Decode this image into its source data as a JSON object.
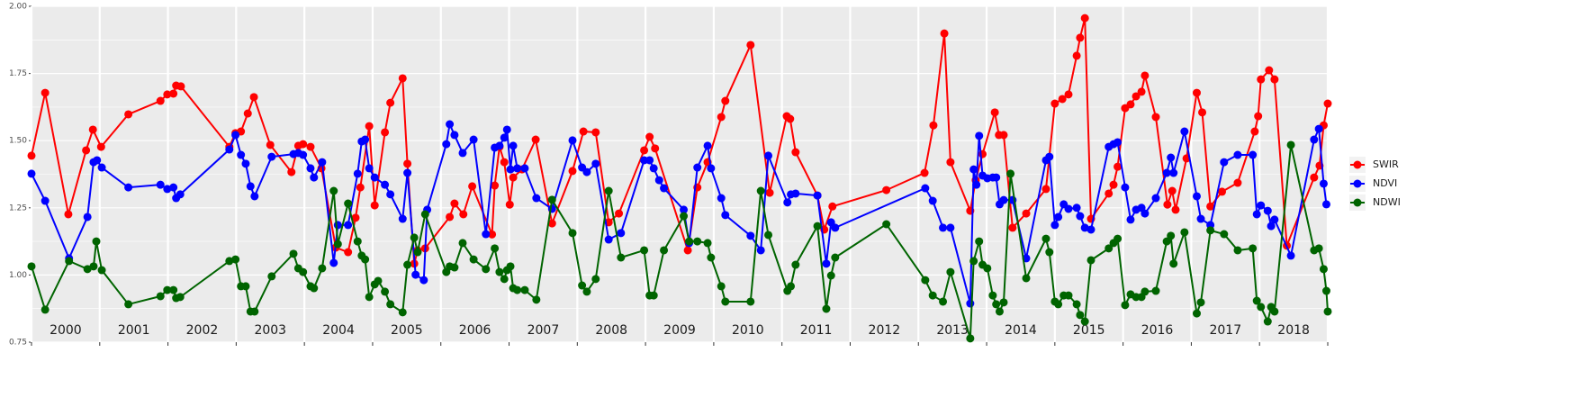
{
  "chart_data": {
    "type": "line",
    "xlim": [
      2000,
      2019
    ],
    "xticks": [
      2000,
      2001,
      2002,
      2003,
      2004,
      2005,
      2006,
      2007,
      2008,
      2009,
      2010,
      2011,
      2012,
      2013,
      2014,
      2015,
      2016,
      2017,
      2018,
      2019
    ],
    "year_labels": [
      "2000",
      "2001",
      "2002",
      "2003",
      "2004",
      "2005",
      "2006",
      "2007",
      "2008",
      "2009",
      "2010",
      "2011",
      "2012",
      "2013",
      "2014",
      "2015",
      "2016",
      "2017",
      "2018"
    ],
    "ylim": [
      0.75,
      2.0
    ],
    "yticks": [
      {
        "value": 0.75,
        "label": "0.75"
      },
      {
        "value": 1.0,
        "label": "1.00"
      },
      {
        "value": 1.25,
        "label": "1.25"
      },
      {
        "value": 1.5,
        "label": "1.50"
      },
      {
        "value": 1.75,
        "label": "1.75"
      },
      {
        "value": 2.0,
        "label": "2.00"
      }
    ],
    "grid": true,
    "legend": "right",
    "series": [
      {
        "name": "SWIR",
        "color": "#ff0000",
        "x": [
          2000.0,
          2000.2,
          2000.54,
          2000.8,
          2000.9,
          2001.02,
          2001.42,
          2001.89,
          2001.99,
          2002.08,
          2002.12,
          2002.19,
          2002.9,
          2002.99,
          2003.07,
          2003.17,
          2003.26,
          2003.5,
          2003.81,
          2003.91,
          2003.98,
          2004.09,
          2004.25,
          2004.46,
          2004.64,
          2004.75,
          2004.82,
          2004.95,
          2005.03,
          2005.18,
          2005.26,
          2005.44,
          2005.51,
          2005.61,
          2005.66,
          2005.77,
          2006.13,
          2006.2,
          2006.33,
          2006.46,
          2006.75,
          2006.79,
          2006.86,
          2006.93,
          2007.01,
          2007.06,
          2007.19,
          2007.39,
          2007.63,
          2007.93,
          2008.09,
          2008.27,
          2008.46,
          2008.61,
          2008.98,
          2009.06,
          2009.14,
          2009.62,
          2009.76,
          2009.91,
          2010.11,
          2010.17,
          2010.54,
          2010.82,
          2011.07,
          2011.12,
          2011.2,
          2011.52,
          2011.62,
          2011.74,
          2012.53,
          2013.09,
          2013.22,
          2013.38,
          2013.47,
          2013.76,
          2013.84,
          2013.94,
          2014.12,
          2014.18,
          2014.25,
          2014.38,
          2014.58,
          2014.87,
          2015.0,
          2015.11,
          2015.2,
          2015.32,
          2015.37,
          2015.44,
          2015.53,
          2015.79,
          2015.86,
          2015.92,
          2016.03,
          2016.11,
          2016.19,
          2016.27,
          2016.32,
          2016.48,
          2016.65,
          2016.72,
          2016.77,
          2016.93,
          2017.08,
          2017.16,
          2017.28,
          2017.45,
          2017.68,
          2017.93,
          2017.98,
          2018.02,
          2018.14,
          2018.22,
          2018.4,
          2018.8,
          2018.88,
          2018.94,
          2019.0
        ],
        "values": [
          1.444,
          1.678,
          1.226,
          1.464,
          1.541,
          1.477,
          1.598,
          1.648,
          1.672,
          1.675,
          1.705,
          1.702,
          1.477,
          1.528,
          1.534,
          1.601,
          1.662,
          1.484,
          1.383,
          1.481,
          1.487,
          1.477,
          1.397,
          1.102,
          1.085,
          1.213,
          1.326,
          1.554,
          1.259,
          1.531,
          1.641,
          1.732,
          1.414,
          1.042,
          1.092,
          1.099,
          1.216,
          1.266,
          1.226,
          1.33,
          1.151,
          1.333,
          1.477,
          1.42,
          1.262,
          1.363,
          1.393,
          1.504,
          1.192,
          1.387,
          1.534,
          1.531,
          1.196,
          1.229,
          1.464,
          1.514,
          1.471,
          1.092,
          1.326,
          1.42,
          1.588,
          1.648,
          1.856,
          1.306,
          1.591,
          1.581,
          1.457,
          1.296,
          1.169,
          1.255,
          1.316,
          1.38,
          1.557,
          1.899,
          1.42,
          1.239,
          1.353,
          1.45,
          1.605,
          1.521,
          1.521,
          1.176,
          1.229,
          1.32,
          1.638,
          1.655,
          1.672,
          1.816,
          1.883,
          1.956,
          1.209,
          1.303,
          1.336,
          1.403,
          1.621,
          1.635,
          1.665,
          1.682,
          1.742,
          1.588,
          1.262,
          1.313,
          1.243,
          1.434,
          1.678,
          1.605,
          1.255,
          1.31,
          1.343,
          1.534,
          1.591,
          1.728,
          1.762,
          1.728,
          1.109,
          1.363,
          1.407,
          1.557,
          1.638
        ]
      },
      {
        "name": "NDVI",
        "color": "#0000ff",
        "x": [
          2000.0,
          2000.2,
          2000.55,
          2000.82,
          2000.91,
          2000.96,
          2001.03,
          2001.42,
          2001.89,
          2001.99,
          2002.08,
          2002.12,
          2002.18,
          2002.9,
          2002.99,
          2003.07,
          2003.14,
          2003.21,
          2003.27,
          2003.52,
          2003.84,
          2003.91,
          2003.98,
          2004.09,
          2004.14,
          2004.26,
          2004.43,
          2004.49,
          2004.64,
          2004.78,
          2004.84,
          2004.89,
          2004.95,
          2005.03,
          2005.18,
          2005.26,
          2005.44,
          2005.51,
          2005.63,
          2005.75,
          2005.8,
          2006.08,
          2006.13,
          2006.2,
          2006.32,
          2006.48,
          2006.66,
          2006.79,
          2006.86,
          2006.93,
          2006.97,
          2007.02,
          2007.06,
          2007.12,
          2007.23,
          2007.4,
          2007.63,
          2007.93,
          2008.07,
          2008.14,
          2008.27,
          2008.46,
          2008.64,
          2008.98,
          2009.06,
          2009.12,
          2009.2,
          2009.27,
          2009.56,
          2009.64,
          2009.76,
          2009.91,
          2009.96,
          2010.11,
          2010.17,
          2010.54,
          2010.69,
          2010.8,
          2011.08,
          2011.13,
          2011.2,
          2011.52,
          2011.65,
          2011.72,
          2011.78,
          2013.1,
          2013.21,
          2013.36,
          2013.47,
          2013.76,
          2013.81,
          2013.85,
          2013.89,
          2013.94,
          2014.01,
          2014.09,
          2014.14,
          2014.19,
          2014.25,
          2014.38,
          2014.58,
          2014.87,
          2014.92,
          2015.0,
          2015.05,
          2015.13,
          2015.2,
          2015.32,
          2015.37,
          2015.44,
          2015.53,
          2015.79,
          2015.86,
          2015.92,
          2016.03,
          2016.11,
          2016.19,
          2016.27,
          2016.32,
          2016.48,
          2016.64,
          2016.7,
          2016.74,
          2016.9,
          2017.08,
          2017.14,
          2017.28,
          2017.48,
          2017.68,
          2017.9,
          2017.96,
          2018.02,
          2018.12,
          2018.17,
          2018.22,
          2018.46,
          2018.8,
          2018.87,
          2018.94,
          2018.98
        ],
        "values": [
          1.377,
          1.276,
          1.062,
          1.216,
          1.42,
          1.427,
          1.4,
          1.326,
          1.336,
          1.32,
          1.326,
          1.286,
          1.3,
          1.467,
          1.521,
          1.447,
          1.414,
          1.33,
          1.293,
          1.44,
          1.45,
          1.454,
          1.447,
          1.397,
          1.363,
          1.42,
          1.045,
          1.186,
          1.186,
          1.377,
          1.497,
          1.504,
          1.397,
          1.363,
          1.336,
          1.3,
          1.209,
          1.38,
          1.001,
          0.981,
          1.243,
          1.487,
          1.561,
          1.521,
          1.454,
          1.504,
          1.152,
          1.474,
          1.481,
          1.511,
          1.541,
          1.393,
          1.481,
          1.397,
          1.397,
          1.286,
          1.246,
          1.501,
          1.4,
          1.383,
          1.414,
          1.132,
          1.156,
          1.427,
          1.427,
          1.397,
          1.353,
          1.323,
          1.243,
          1.119,
          1.4,
          1.481,
          1.397,
          1.286,
          1.223,
          1.146,
          1.092,
          1.444,
          1.27,
          1.3,
          1.303,
          1.296,
          1.042,
          1.196,
          1.176,
          1.323,
          1.276,
          1.176,
          1.176,
          0.894,
          1.393,
          1.336,
          1.518,
          1.37,
          1.36,
          1.363,
          1.363,
          1.263,
          1.279,
          1.279,
          1.062,
          1.427,
          1.44,
          1.186,
          1.216,
          1.263,
          1.246,
          1.25,
          1.219,
          1.176,
          1.169,
          1.477,
          1.487,
          1.494,
          1.326,
          1.206,
          1.243,
          1.25,
          1.229,
          1.286,
          1.38,
          1.437,
          1.38,
          1.534,
          1.293,
          1.209,
          1.186,
          1.42,
          1.447,
          1.447,
          1.226,
          1.259,
          1.239,
          1.182,
          1.206,
          1.072,
          1.504,
          1.544,
          1.34,
          1.263
        ]
      },
      {
        "name": "NDWI",
        "color": "#006400",
        "x": [
          2000.0,
          2000.2,
          2000.55,
          2000.82,
          2000.91,
          2000.95,
          2001.03,
          2001.42,
          2001.89,
          2001.99,
          2002.08,
          2002.12,
          2002.18,
          2002.9,
          2002.99,
          2003.07,
          2003.14,
          2003.21,
          2003.27,
          2003.52,
          2003.84,
          2003.91,
          2003.98,
          2004.09,
          2004.14,
          2004.26,
          2004.43,
          2004.49,
          2004.64,
          2004.78,
          2004.84,
          2004.89,
          2004.95,
          2005.03,
          2005.08,
          2005.18,
          2005.26,
          2005.44,
          2005.51,
          2005.61,
          2005.66,
          2005.77,
          2006.08,
          2006.13,
          2006.2,
          2006.32,
          2006.48,
          2006.66,
          2006.79,
          2006.86,
          2006.93,
          2006.97,
          2007.02,
          2007.06,
          2007.12,
          2007.23,
          2007.4,
          2007.63,
          2007.93,
          2008.07,
          2008.14,
          2008.27,
          2008.46,
          2008.64,
          2008.98,
          2009.06,
          2009.12,
          2009.27,
          2009.56,
          2009.64,
          2009.76,
          2009.91,
          2009.96,
          2010.11,
          2010.17,
          2010.54,
          2010.69,
          2010.8,
          2011.08,
          2011.13,
          2011.2,
          2011.52,
          2011.65,
          2011.72,
          2011.78,
          2012.53,
          2013.1,
          2013.21,
          2013.36,
          2013.47,
          2013.76,
          2013.81,
          2013.89,
          2013.94,
          2014.01,
          2014.09,
          2014.14,
          2014.19,
          2014.25,
          2014.35,
          2014.58,
          2014.87,
          2014.92,
          2015.0,
          2015.05,
          2015.13,
          2015.2,
          2015.32,
          2015.37,
          2015.44,
          2015.53,
          2015.79,
          2015.86,
          2015.92,
          2016.03,
          2016.11,
          2016.19,
          2016.27,
          2016.32,
          2016.48,
          2016.64,
          2016.7,
          2016.74,
          2016.9,
          2017.08,
          2017.14,
          2017.28,
          2017.48,
          2017.68,
          2017.9,
          2017.96,
          2018.02,
          2018.12,
          2018.17,
          2018.22,
          2018.46,
          2018.8,
          2018.87,
          2018.94,
          2018.98,
          2019.0
        ],
        "values": [
          1.032,
          0.871,
          1.052,
          1.022,
          1.032,
          1.125,
          1.018,
          0.891,
          0.921,
          0.944,
          0.944,
          0.914,
          0.918,
          1.052,
          1.058,
          0.958,
          0.958,
          0.864,
          0.864,
          0.995,
          1.079,
          1.025,
          1.011,
          0.958,
          0.951,
          1.025,
          1.313,
          1.115,
          1.266,
          1.125,
          1.072,
          1.058,
          0.918,
          0.965,
          0.978,
          0.938,
          0.891,
          0.861,
          1.038,
          1.139,
          1.085,
          1.226,
          1.011,
          1.032,
          1.028,
          1.119,
          1.058,
          1.022,
          1.099,
          1.011,
          0.985,
          1.018,
          1.032,
          0.951,
          0.944,
          0.944,
          0.908,
          1.28,
          1.156,
          0.961,
          0.938,
          0.985,
          1.313,
          1.065,
          1.092,
          0.924,
          0.924,
          1.092,
          1.219,
          1.125,
          1.125,
          1.119,
          1.065,
          0.958,
          0.901,
          0.901,
          1.313,
          1.149,
          0.941,
          0.958,
          1.038,
          1.182,
          0.874,
          0.998,
          1.065,
          1.189,
          0.981,
          0.924,
          0.901,
          1.011,
          0.764,
          1.052,
          1.125,
          1.038,
          1.025,
          0.924,
          0.891,
          0.864,
          0.898,
          1.377,
          0.988,
          1.135,
          1.085,
          0.901,
          0.891,
          0.924,
          0.924,
          0.891,
          0.851,
          0.827,
          1.055,
          1.099,
          1.119,
          1.135,
          0.888,
          0.928,
          0.918,
          0.918,
          0.938,
          0.941,
          1.125,
          1.146,
          1.042,
          1.159,
          0.857,
          0.898,
          1.166,
          1.152,
          1.092,
          1.099,
          0.904,
          0.881,
          0.827,
          0.881,
          0.864,
          1.484,
          1.092,
          1.099,
          1.022,
          0.941,
          0.864
        ]
      }
    ]
  }
}
